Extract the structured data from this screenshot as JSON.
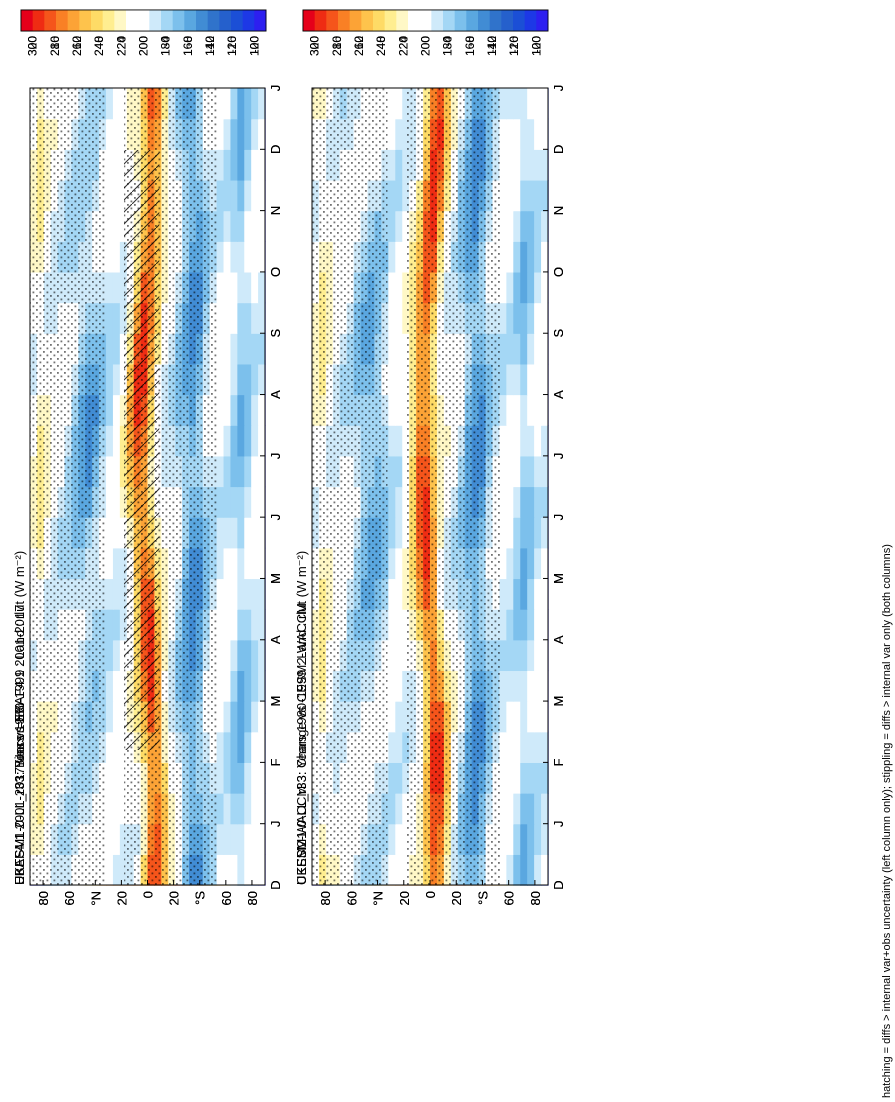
{
  "figure": {
    "footnote": "hatching = diffs > internal var+obs uncertainty (left column only); stippling = diffs > internal var only (both columns)"
  },
  "chart_data": [
    {
      "id": "p1",
      "type": "heatmap",
      "title": "UKESM1-0-LL_r33: Years 1980-1999 : Land : rlut (W m⁻²)",
      "kind": "abs",
      "hatch": true,
      "stipple": true,
      "x_ticks": [
        "D",
        "J",
        "F",
        "M",
        "A",
        "M",
        "J",
        "J",
        "A",
        "S",
        "O",
        "N",
        "D",
        "J"
      ],
      "y_ticks": [
        "80",
        "60",
        "°N",
        "20",
        "0",
        "20",
        "°S",
        "60",
        "80"
      ],
      "colorbar_ticks": [
        "300",
        "280",
        "260",
        "240",
        "220",
        "200",
        "180",
        "160",
        "140",
        "120",
        "100"
      ]
    },
    {
      "id": "p2",
      "type": "heatmap",
      "title": "UKESM1-0-LL_r33: Years 1980-1999 : Land : rlut (W m⁻²)",
      "kind": "abs",
      "hatch": false,
      "stipple": true,
      "x_ticks": [
        "D",
        "J",
        "F",
        "M",
        "A",
        "M",
        "J",
        "J",
        "A",
        "S",
        "O",
        "N",
        "D",
        "J"
      ],
      "y_ticks": [
        "80",
        "60",
        "°N",
        "20",
        "0",
        "20",
        "°S",
        "60",
        "80"
      ],
      "colorbar_ticks": [
        "300",
        "280",
        "260",
        "240",
        "220",
        "200",
        "180",
        "160",
        "140",
        "120",
        "100"
      ]
    },
    {
      "id": "p3",
      "type": "heatmap",
      "title": "EBAF4.1 2001-2017 Uncer=5%",
      "kind": "abs",
      "hatch": true,
      "stipple": true,
      "x_ticks": [
        "D",
        "J",
        "F",
        "M",
        "A",
        "M",
        "J",
        "J",
        "A",
        "S",
        "O",
        "N",
        "D",
        "J"
      ],
      "y_ticks": [
        "80",
        "60",
        "°N",
        "20",
        "0",
        "20",
        "°S",
        "60",
        "80"
      ],
      "colorbar_ticks": [
        "300",
        "280",
        "260",
        "240",
        "220",
        "200",
        "180",
        "160",
        "140",
        "120",
        "100"
      ]
    },
    {
      "id": "p4",
      "type": "heatmap",
      "title": "CESM2-WACCM",
      "kind": "abs",
      "hatch": false,
      "stipple": true,
      "x_ticks": [
        "D",
        "J",
        "F",
        "M",
        "A",
        "M",
        "J",
        "J",
        "A",
        "S",
        "O",
        "N",
        "D",
        "J"
      ],
      "y_ticks": [
        "80",
        "60",
        "°N",
        "20",
        "0",
        "20",
        "°S",
        "60",
        "80"
      ],
      "colorbar_ticks": [
        "300",
        "280",
        "260",
        "240",
        "220",
        "200",
        "180",
        "160",
        "140",
        "120",
        "100"
      ]
    },
    {
      "id": "p5",
      "type": "heatmap",
      "title": "UKESM1-0-LL_r33: Bias vs EBAF4.1 2001-2017",
      "kind": "diff",
      "hatch": true,
      "stipple": true,
      "x_ticks": [
        "D",
        "J",
        "F",
        "M",
        "A",
        "M",
        "J",
        "J",
        "A",
        "S",
        "O",
        "N",
        "D",
        "J"
      ],
      "y_ticks": [
        "80",
        "60",
        "°N",
        "20",
        "0",
        "20",
        "°S",
        "60",
        "80"
      ],
      "colorbar_ticks": [
        "20",
        "16",
        "12",
        "8",
        "4",
        "0",
        "-4",
        "-8",
        "-12",
        "-16",
        "-20"
      ]
    },
    {
      "id": "p6",
      "type": "heatmap",
      "title": "UKESM1-0-LL_r33: Change vs CESM2-WACCM",
      "kind": "diff",
      "hatch": false,
      "stipple": true,
      "x_ticks": [
        "D",
        "J",
        "F",
        "M",
        "A",
        "M",
        "J",
        "J",
        "A",
        "S",
        "O",
        "N",
        "D",
        "J"
      ],
      "y_ticks": [
        "80",
        "60",
        "°N",
        "20",
        "0",
        "20",
        "°S",
        "60",
        "80"
      ],
      "colorbar_ticks": [
        "20",
        "16",
        "12",
        "8",
        "4",
        "0",
        "-4",
        "-8",
        "-12",
        "-16",
        "-20"
      ]
    }
  ],
  "colors": {
    "abs_scale": [
      "#e5001a",
      "#ef2c13",
      "#f5551b",
      "#f98025",
      "#fca336",
      "#fec34c",
      "#fedb66",
      "#ffee90",
      "#fff8c6",
      "#ffffff",
      "#ffffff",
      "#cfeafa",
      "#a4d7f5",
      "#7cc0ec",
      "#5aa7e0",
      "#418cd4",
      "#3073cb",
      "#2560cc",
      "#1b4fd6",
      "#1d38e6",
      "#2d1ff0"
    ],
    "diff_scale": [
      "#e5001a",
      "#ef2c13",
      "#f5551b",
      "#f98025",
      "#fca336",
      "#fec34c",
      "#fedb66",
      "#ffee90",
      "#fff8c6",
      "#ffffff",
      "#ffffff",
      "#cfeafa",
      "#a4d7f5",
      "#7cc0ec",
      "#5aa7e0",
      "#418cd4",
      "#3073cb",
      "#2560cc",
      "#1b4fd6",
      "#1d38e6",
      "#2d1ff0"
    ]
  }
}
